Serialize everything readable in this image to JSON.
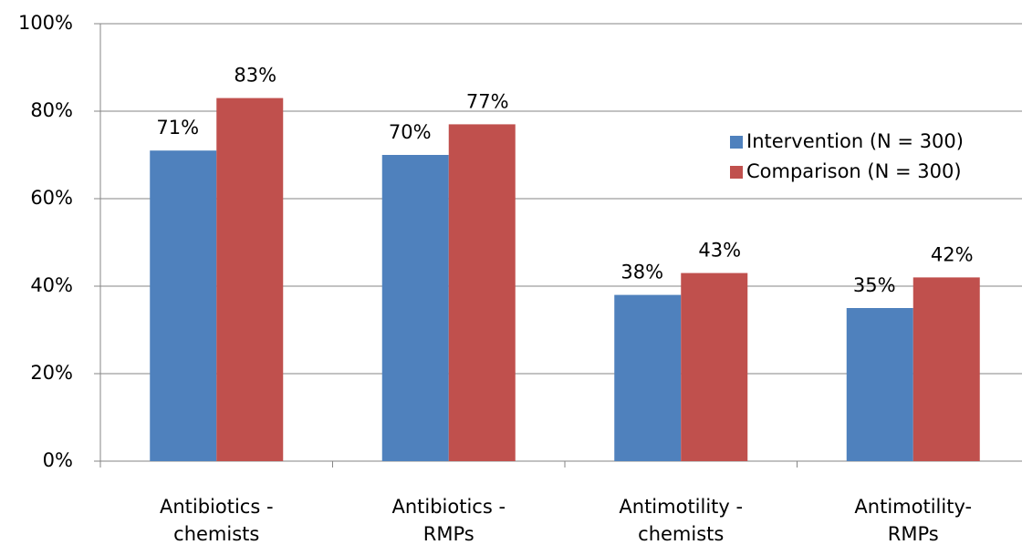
{
  "chart_data": {
    "type": "bar",
    "categories": [
      "Antibiotics -\nchemists",
      "Antibiotics -\nRMPs",
      "Antimotility -\nchemists",
      "Antimotility-\nRMPs"
    ],
    "series": [
      {
        "name": "Intervention (N = 300)",
        "color": "#4f81bd",
        "values": [
          71,
          70,
          38,
          35
        ],
        "value_labels": [
          "71%",
          "70%",
          "38%",
          "35%"
        ]
      },
      {
        "name": "Comparison (N = 300)",
        "color": "#c0504d",
        "values": [
          83,
          77,
          43,
          42
        ],
        "value_labels": [
          "83%",
          "77%",
          "43%",
          "42%"
        ]
      }
    ],
    "ylim": [
      0,
      100
    ],
    "yticks": [
      {
        "value": 0,
        "label": "0%"
      },
      {
        "value": 20,
        "label": "20%"
      },
      {
        "value": 40,
        "label": "40%"
      },
      {
        "value": 60,
        "label": "60%"
      },
      {
        "value": 80,
        "label": "80%"
      },
      {
        "value": 100,
        "label": "100%"
      }
    ],
    "grid": true,
    "legend": "upper right"
  }
}
